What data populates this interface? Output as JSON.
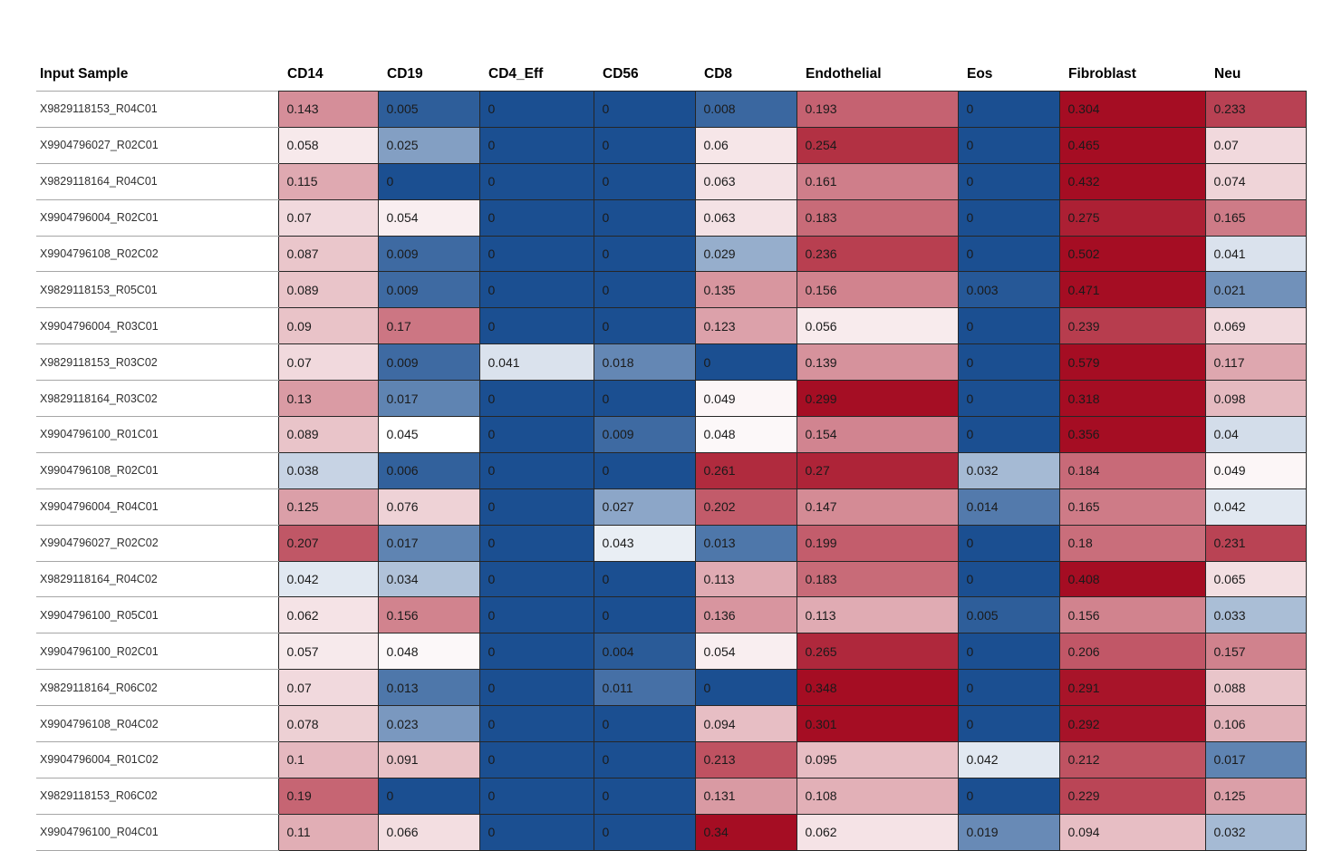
{
  "chart_data": {
    "type": "heatmap",
    "title": "",
    "row_label_header": "Input Sample",
    "columns": [
      "CD14",
      "CD19",
      "CD4_Eff",
      "CD56",
      "CD8",
      "Endothelial",
      "Eos",
      "Fibroblast",
      "Neu"
    ],
    "rows": [
      {
        "sample": "X9829118153_R04C01",
        "values": [
          0.143,
          0.005,
          0,
          0,
          0.008,
          0.193,
          0,
          0.304,
          0.233
        ]
      },
      {
        "sample": "X9904796027_R02C01",
        "values": [
          0.058,
          0.025,
          0,
          0,
          0.06,
          0.254,
          0,
          0.465,
          0.07
        ]
      },
      {
        "sample": "X9829118164_R04C01",
        "values": [
          0.115,
          0,
          0,
          0,
          0.063,
          0.161,
          0,
          0.432,
          0.074
        ]
      },
      {
        "sample": "X9904796004_R02C01",
        "values": [
          0.07,
          0.054,
          0,
          0,
          0.063,
          0.183,
          0,
          0.275,
          0.165
        ]
      },
      {
        "sample": "X9904796108_R02C02",
        "values": [
          0.087,
          0.009,
          0,
          0,
          0.029,
          0.236,
          0,
          0.502,
          0.041
        ]
      },
      {
        "sample": "X9829118153_R05C01",
        "values": [
          0.089,
          0.009,
          0,
          0,
          0.135,
          0.156,
          0.003,
          0.471,
          0.021
        ]
      },
      {
        "sample": "X9904796004_R03C01",
        "values": [
          0.09,
          0.17,
          0,
          0,
          0.123,
          0.056,
          0,
          0.239,
          0.069
        ]
      },
      {
        "sample": "X9829118153_R03C02",
        "values": [
          0.07,
          0.009,
          0.041,
          0.018,
          0,
          0.139,
          0,
          0.579,
          0.117
        ]
      },
      {
        "sample": "X9829118164_R03C02",
        "values": [
          0.13,
          0.017,
          0,
          0,
          0.049,
          0.299,
          0,
          0.318,
          0.098
        ]
      },
      {
        "sample": "X9904796100_R01C01",
        "values": [
          0.089,
          0.045,
          0,
          0.009,
          0.048,
          0.154,
          0,
          0.356,
          0.04
        ]
      },
      {
        "sample": "X9904796108_R02C01",
        "values": [
          0.038,
          0.006,
          0,
          0,
          0.261,
          0.27,
          0.032,
          0.184,
          0.049
        ]
      },
      {
        "sample": "X9904796004_R04C01",
        "values": [
          0.125,
          0.076,
          0,
          0.027,
          0.202,
          0.147,
          0.014,
          0.165,
          0.042
        ]
      },
      {
        "sample": "X9904796027_R02C02",
        "values": [
          0.207,
          0.017,
          0,
          0.043,
          0.013,
          0.199,
          0,
          0.18,
          0.231
        ]
      },
      {
        "sample": "X9829118164_R04C02",
        "values": [
          0.042,
          0.034,
          0,
          0,
          0.113,
          0.183,
          0,
          0.408,
          0.065
        ]
      },
      {
        "sample": "X9904796100_R05C01",
        "values": [
          0.062,
          0.156,
          0,
          0,
          0.136,
          0.113,
          0.005,
          0.156,
          0.033
        ]
      },
      {
        "sample": "X9904796100_R02C01",
        "values": [
          0.057,
          0.048,
          0,
          0.004,
          0.054,
          0.265,
          0,
          0.206,
          0.157
        ]
      },
      {
        "sample": "X9829118164_R06C02",
        "values": [
          0.07,
          0.013,
          0,
          0.011,
          0,
          0.348,
          0,
          0.291,
          0.088
        ]
      },
      {
        "sample": "X9904796108_R04C02",
        "values": [
          0.078,
          0.023,
          0,
          0,
          0.094,
          0.301,
          0,
          0.292,
          0.106
        ]
      },
      {
        "sample": "X9904796004_R01C02",
        "values": [
          0.1,
          0.091,
          0,
          0,
          0.213,
          0.095,
          0.042,
          0.212,
          0.017
        ]
      },
      {
        "sample": "X9829118153_R06C02",
        "values": [
          0.19,
          0,
          0,
          0,
          0.131,
          0.108,
          0,
          0.229,
          0.125
        ]
      },
      {
        "sample": "X9904796100_R04C01",
        "values": [
          0.11,
          0.066,
          0,
          0,
          0.34,
          0.062,
          0.019,
          0.094,
          0.032
        ]
      }
    ],
    "colormap": {
      "low": "#1B4F91",
      "mid": "#FFFFFF",
      "high": "#A50D23",
      "low_value": 0,
      "mid_value": 0.045,
      "high_value": 0.3
    },
    "layout_hints": {
      "legend": "none",
      "grid": "dark cell borders on heatmap cells, light gray row separators on sample column",
      "value_alignment": "left"
    }
  }
}
